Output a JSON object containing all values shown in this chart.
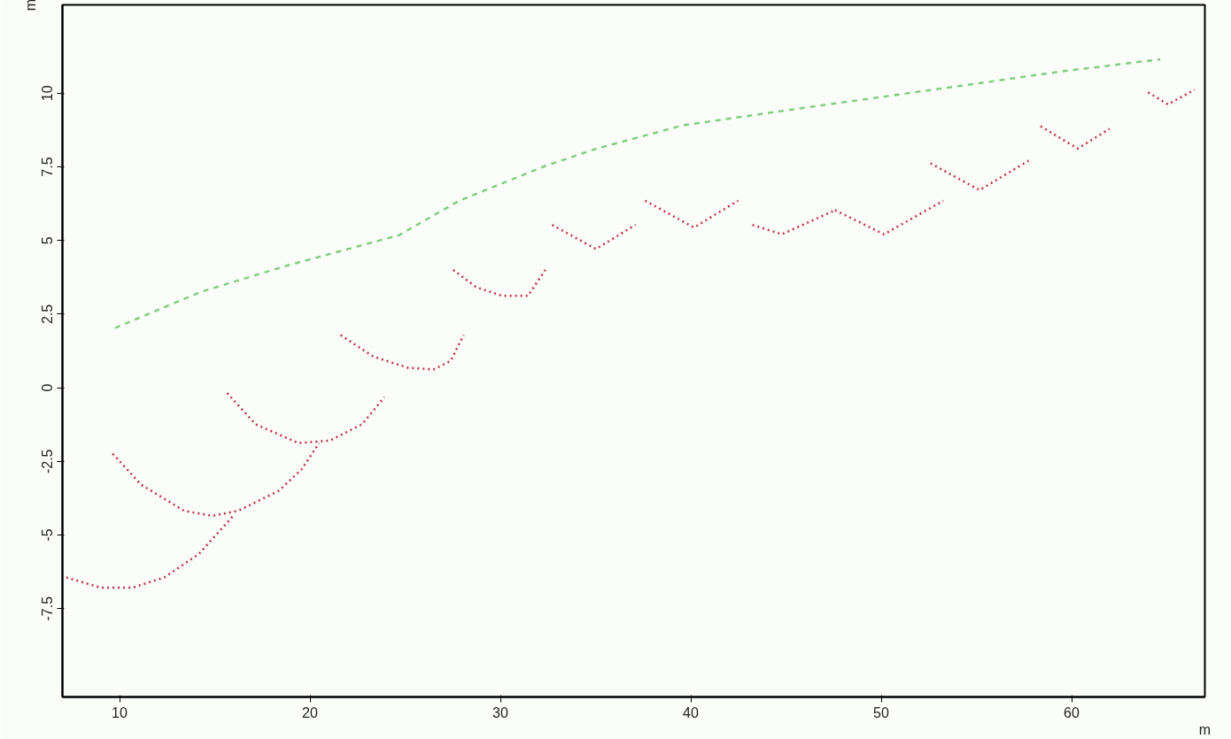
{
  "chart_data": {
    "type": "line",
    "xlabel": "m",
    "ylabel": "m",
    "xlim": [
      7,
      67
    ],
    "ylim": [
      -10.5,
      13
    ],
    "xticks": [
      10,
      20,
      30,
      40,
      50,
      60
    ],
    "yticks": [
      -7.5,
      -5,
      -2.5,
      0,
      2.5,
      5,
      7.5,
      10
    ],
    "grid": false,
    "series": [
      {
        "color": "#7fcf7f",
        "line_style": "dashed",
        "x": [
          9.77,
          14.29,
          18.81,
          24.68,
          27.84,
          32.36,
          35.07,
          39.58,
          45.9,
          50.42,
          54.94,
          59.46,
          64.65
        ],
        "values": [
          2.03,
          3.26,
          4.15,
          5.18,
          6.35,
          7.53,
          8.12,
          8.91,
          9.5,
          9.91,
          10.32,
          10.74,
          11.15
        ]
      },
      {
        "color": "#c0304a",
        "line_style": "dotted",
        "x": [
          7.2,
          9.01,
          10.68,
          12.35,
          14.16,
          16.01
        ],
        "values": [
          -6.44,
          -6.79,
          -6.79,
          -6.44,
          -5.65,
          -4.32
        ]
      },
      {
        "color": "#c0304a",
        "line_style": "dotted",
        "x": [
          9.64,
          11.13,
          13.39,
          14.88,
          16.23,
          18.36,
          19.58,
          20.48
        ],
        "values": [
          -2.24,
          -3.29,
          -4.18,
          -4.35,
          -4.18,
          -3.5,
          -2.76,
          -1.88
        ]
      },
      {
        "color": "#c0304a",
        "line_style": "dotted",
        "x": [
          15.65,
          17.14,
          19.39,
          21.07,
          22.74,
          23.91
        ],
        "values": [
          -0.18,
          -1.24,
          -1.88,
          -1.79,
          -1.24,
          -0.32
        ]
      },
      {
        "color": "#c0304a",
        "line_style": "dotted",
        "x": [
          21.61,
          23.32,
          25.13,
          26.49,
          27.39,
          28.07
        ],
        "values": [
          1.79,
          1.06,
          0.68,
          0.62,
          0.91,
          1.79
        ]
      },
      {
        "color": "#c0304a",
        "line_style": "dotted",
        "x": [
          27.52,
          28.74,
          30.1,
          31.45,
          32.36
        ],
        "values": [
          4.0,
          3.41,
          3.12,
          3.12,
          4.0
        ]
      },
      {
        "color": "#c0304a",
        "line_style": "dotted",
        "x": [
          32.72,
          35.02,
          37.1
        ],
        "values": [
          5.53,
          4.71,
          5.53
        ]
      },
      {
        "color": "#c0304a",
        "line_style": "dotted",
        "x": [
          37.6,
          40.17,
          42.48
        ],
        "values": [
          6.35,
          5.44,
          6.35
        ]
      },
      {
        "color": "#c0304a",
        "line_style": "dotted",
        "x": [
          43.24,
          44.78,
          47.58
        ],
        "values": [
          5.53,
          5.21,
          6.03
        ]
      },
      {
        "color": "#c0304a",
        "line_style": "dotted",
        "x": [
          47.58,
          50.15,
          53.27
        ],
        "values": [
          6.03,
          5.21,
          6.35
        ]
      },
      {
        "color": "#c0304a",
        "line_style": "dotted",
        "x": [
          52.59,
          55.17,
          57.74
        ],
        "values": [
          7.62,
          6.71,
          7.71
        ]
      },
      {
        "color": "#c0304a",
        "line_style": "dotted",
        "x": [
          58.37,
          60.32,
          61.99
        ],
        "values": [
          8.88,
          8.12,
          8.79
        ]
      },
      {
        "color": "#c0304a",
        "line_style": "dotted",
        "x": [
          64.02,
          65.06,
          66.46
        ],
        "values": [
          10.03,
          9.62,
          10.12
        ]
      }
    ]
  }
}
